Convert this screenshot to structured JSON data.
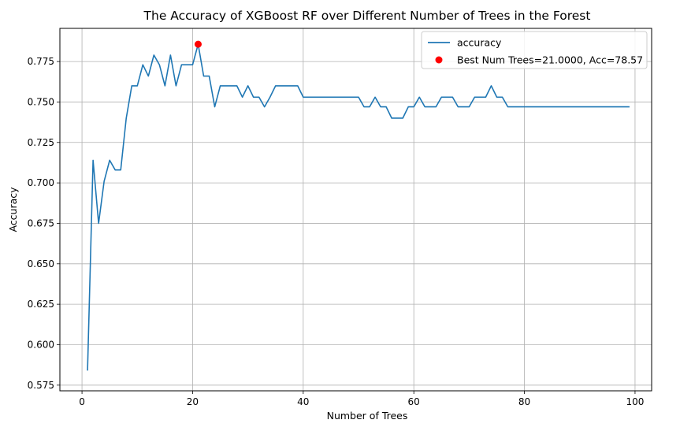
{
  "chart_data": {
    "type": "line",
    "title": "The Accuracy of XGBoost RF over Different Number of Trees in the Forest",
    "xlabel": "Number of Trees",
    "ylabel": "Accuracy",
    "xlim": [
      -4,
      103
    ],
    "ylim": [
      0.5715,
      0.7955
    ],
    "xticks": [
      0,
      20,
      40,
      60,
      80,
      100
    ],
    "xtick_labels": [
      "0",
      "20",
      "40",
      "60",
      "80",
      "100"
    ],
    "yticks": [
      0.575,
      0.6,
      0.625,
      0.65,
      0.675,
      0.7,
      0.725,
      0.75,
      0.775
    ],
    "ytick_labels": [
      "0.575",
      "0.600",
      "0.625",
      "0.650",
      "0.675",
      "0.700",
      "0.725",
      "0.750",
      "0.775"
    ],
    "grid": true,
    "legend_position": "top-right",
    "series": [
      {
        "name": "accuracy",
        "color": "#1f77b4",
        "x": [
          1,
          2,
          3,
          4,
          5,
          6,
          7,
          8,
          9,
          10,
          11,
          12,
          13,
          14,
          15,
          16,
          17,
          18,
          19,
          20,
          21,
          22,
          23,
          24,
          25,
          26,
          27,
          28,
          29,
          30,
          31,
          32,
          33,
          34,
          35,
          36,
          37,
          38,
          39,
          40,
          41,
          42,
          43,
          44,
          45,
          46,
          47,
          48,
          49,
          50,
          51,
          52,
          53,
          54,
          55,
          56,
          57,
          58,
          59,
          60,
          61,
          62,
          63,
          64,
          65,
          66,
          67,
          68,
          69,
          70,
          71,
          72,
          73,
          74,
          75,
          76,
          77,
          78,
          79,
          80,
          81,
          82,
          83,
          84,
          85,
          86,
          87,
          88,
          89,
          90,
          91,
          92,
          93,
          94,
          95,
          96,
          97,
          98,
          99
        ],
        "y": [
          0.584,
          0.714,
          0.675,
          0.701,
          0.714,
          0.708,
          0.708,
          0.74,
          0.76,
          0.76,
          0.773,
          0.766,
          0.779,
          0.773,
          0.76,
          0.779,
          0.76,
          0.773,
          0.773,
          0.773,
          0.7857,
          0.766,
          0.766,
          0.747,
          0.76,
          0.76,
          0.76,
          0.76,
          0.753,
          0.76,
          0.753,
          0.753,
          0.747,
          0.753,
          0.76,
          0.76,
          0.76,
          0.76,
          0.76,
          0.753,
          0.753,
          0.753,
          0.753,
          0.753,
          0.753,
          0.753,
          0.753,
          0.753,
          0.753,
          0.753,
          0.747,
          0.747,
          0.753,
          0.747,
          0.747,
          0.74,
          0.74,
          0.74,
          0.747,
          0.747,
          0.753,
          0.747,
          0.747,
          0.747,
          0.753,
          0.753,
          0.753,
          0.747,
          0.747,
          0.747,
          0.753,
          0.753,
          0.753,
          0.76,
          0.753,
          0.753,
          0.747,
          0.747,
          0.747,
          0.747,
          0.747,
          0.747,
          0.747,
          0.747,
          0.747,
          0.747,
          0.747,
          0.747,
          0.747,
          0.747,
          0.747,
          0.747,
          0.747,
          0.747,
          0.747,
          0.747,
          0.747,
          0.747,
          0.747
        ]
      },
      {
        "name": "Best Num Trees=21.0000, Acc=78.57",
        "type": "scatter",
        "color": "#ff0000",
        "x": [
          21
        ],
        "y": [
          0.7857
        ]
      }
    ]
  }
}
